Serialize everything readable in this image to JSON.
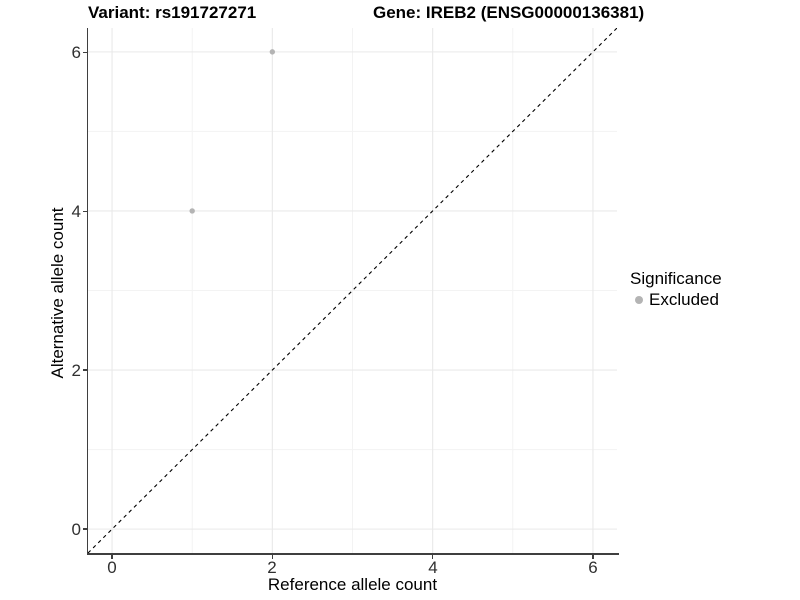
{
  "header": {
    "title_left": "Variant: rs191727271",
    "title_right": "Gene: IREB2 (ENSG00000136381)"
  },
  "axes": {
    "x": {
      "label": "Reference allele count",
      "ticks": [
        "0",
        "2",
        "4",
        "6"
      ]
    },
    "y": {
      "label": "Alternative allele count",
      "ticks": [
        "0",
        "2",
        "4",
        "6"
      ]
    }
  },
  "legend": {
    "title": "Significance",
    "items": [
      {
        "label": "Excluded",
        "marker": "dot-icon",
        "color": "#b4b4b4"
      }
    ]
  },
  "chart_data": {
    "type": "scatter",
    "title": "Variant: rs191727271 — Gene: IREB2 (ENSG00000136381)",
    "xlabel": "Reference allele count",
    "ylabel": "Alternative allele count",
    "xlim": [
      -0.3,
      6.3
    ],
    "ylim": [
      -0.3,
      6.3
    ],
    "x_ticks": [
      0,
      2,
      4,
      6
    ],
    "y_ticks": [
      0,
      2,
      4,
      6
    ],
    "grid": {
      "major": [
        0,
        2,
        4,
        6
      ],
      "minor": [
        1,
        3,
        5
      ],
      "on": true
    },
    "series": [
      {
        "name": "Excluded",
        "color": "#b4b4b4",
        "points": [
          {
            "x": 1,
            "y": 4
          },
          {
            "x": 2,
            "y": 6
          }
        ]
      }
    ],
    "reference_line": {
      "kind": "identity",
      "from": [
        -0.3,
        -0.3
      ],
      "to": [
        6.3,
        6.3
      ],
      "style": "dashed",
      "color": "#000000"
    },
    "legend_position": "right"
  },
  "colors": {
    "background": "#ffffff",
    "axis_line": "#3f3f3f",
    "tick_label": "#303030",
    "grid_major": "#e9e9e9",
    "grid_minor": "#f3f3f3",
    "point": "#b4b4b4",
    "reference_line": "#000000"
  }
}
